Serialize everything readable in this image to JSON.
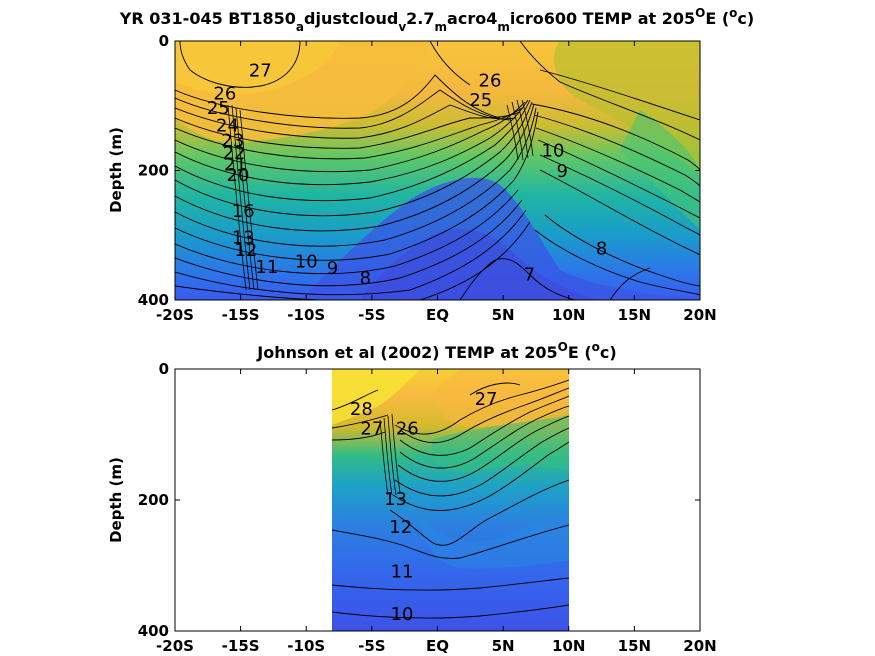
{
  "chart_data": [
    {
      "type": "contour",
      "title": "YR 031-045 BT1850_adjustcloud_v2.7_macro4_micro600 TEMP at 205°E (°c)",
      "title_parts": {
        "a": "YR 031-045 BT1850",
        "a_sub": "a",
        "b": "djustcloud",
        "b_sub": "v",
        "c": "2.7",
        "c_sub": "m",
        "d": "acro4",
        "d_sub": "m",
        "e": "icro600 TEMP at 205",
        "e_sup": "O",
        "f": "E (",
        "f_sup": "o",
        "g": "c)"
      },
      "ylabel": "Depth (m)",
      "xlim": [
        -20,
        20
      ],
      "ylim": [
        0,
        400
      ],
      "y_reversed": true,
      "xticks": [
        -20,
        -15,
        -10,
        -5,
        0,
        5,
        10,
        15,
        20
      ],
      "xtick_labels": [
        "-20S",
        "-15S",
        "-10S",
        "-5S",
        "EQ",
        "5N",
        "10N",
        "15N",
        "20N"
      ],
      "yticks": [
        0,
        200,
        400
      ],
      "ytick_labels": [
        "0",
        "200",
        "400"
      ],
      "data_extent": [
        -20,
        20
      ],
      "contour_labels": [
        {
          "text": "27",
          "lat": -13.5,
          "depth": 55
        },
        {
          "text": "26",
          "lat": -16.2,
          "depth": 90
        },
        {
          "text": "25",
          "lat": -16.7,
          "depth": 113
        },
        {
          "text": "24",
          "lat": -16.0,
          "depth": 140
        },
        {
          "text": "23",
          "lat": -15.6,
          "depth": 163
        },
        {
          "text": "22",
          "lat": -15.5,
          "depth": 182
        },
        {
          "text": "21",
          "lat": -15.4,
          "depth": 200
        },
        {
          "text": "20",
          "lat": -15.2,
          "depth": 216
        },
        {
          "text": "16",
          "lat": -14.8,
          "depth": 272
        },
        {
          "text": "13",
          "lat": -14.8,
          "depth": 313
        },
        {
          "text": "12",
          "lat": -14.6,
          "depth": 332
        },
        {
          "text": "11",
          "lat": -13.0,
          "depth": 358
        },
        {
          "text": "10",
          "lat": -10.0,
          "depth": 350
        },
        {
          "text": "9",
          "lat": -8.0,
          "depth": 360
        },
        {
          "text": "8",
          "lat": -5.5,
          "depth": 375
        },
        {
          "text": "26",
          "lat": 4.0,
          "depth": 70
        },
        {
          "text": "25",
          "lat": 3.3,
          "depth": 100
        },
        {
          "text": "10",
          "lat": 8.8,
          "depth": 178
        },
        {
          "text": "9",
          "lat": 9.5,
          "depth": 210
        },
        {
          "text": "8",
          "lat": 12.5,
          "depth": 330
        },
        {
          "text": "7",
          "lat": 7.0,
          "depth": 370
        }
      ]
    },
    {
      "type": "contour",
      "title": "Johnson et al (2002) TEMP at 205°E (°c)",
      "title_parts": {
        "a": "Johnson et al (2002) TEMP at 205",
        "a_sup": "O",
        "b": "E (",
        "b_sup": "o",
        "c": "c)"
      },
      "ylabel": "Depth (m)",
      "xlim": [
        -20,
        20
      ],
      "ylim": [
        0,
        400
      ],
      "y_reversed": true,
      "xticks": [
        -20,
        -15,
        -10,
        -5,
        0,
        5,
        10,
        15,
        20
      ],
      "xtick_labels": [
        "-20S",
        "-15S",
        "-10S",
        "-5S",
        "EQ",
        "5N",
        "10N",
        "15N",
        "20N"
      ],
      "yticks": [
        0,
        200,
        400
      ],
      "ytick_labels": [
        "0",
        "200",
        "400"
      ],
      "data_extent": [
        -8,
        10
      ],
      "contour_labels": [
        {
          "text": "28",
          "lat": -5.8,
          "depth": 70
        },
        {
          "text": "27",
          "lat": 3.7,
          "depth": 55
        },
        {
          "text": "27",
          "lat": -5.0,
          "depth": 100
        },
        {
          "text": "26",
          "lat": -2.3,
          "depth": 100
        },
        {
          "text": "13",
          "lat": -3.2,
          "depth": 208
        },
        {
          "text": "12",
          "lat": -2.8,
          "depth": 250
        },
        {
          "text": "11",
          "lat": -2.7,
          "depth": 318
        },
        {
          "text": "10",
          "lat": -2.7,
          "depth": 383
        }
      ]
    }
  ]
}
